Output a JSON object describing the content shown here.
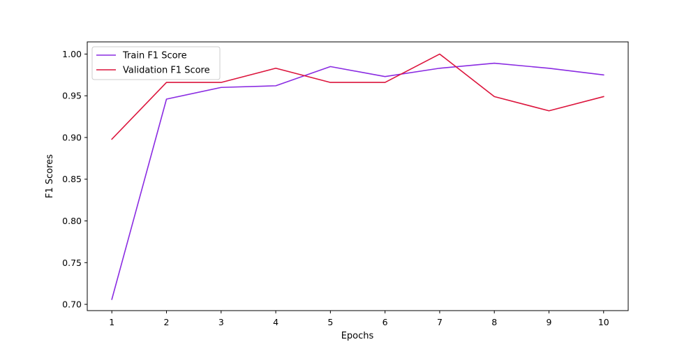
{
  "chart_data": {
    "type": "line",
    "title": "",
    "xlabel": "Epochs",
    "ylabel": "F1 Scores",
    "x": [
      1,
      2,
      3,
      4,
      5,
      6,
      7,
      8,
      9,
      10
    ],
    "xticks": [
      "1",
      "2",
      "3",
      "4",
      "5",
      "6",
      "7",
      "8",
      "9",
      "10"
    ],
    "yticks": [
      0.7,
      0.75,
      0.8,
      0.85,
      0.9,
      0.95,
      1.0
    ],
    "ytick_labels": [
      "0.70",
      "0.75",
      "0.80",
      "0.85",
      "0.90",
      "0.95",
      "1.00"
    ],
    "xlim": [
      0.55,
      10.45
    ],
    "ylim": [
      0.6925,
      1.0146
    ],
    "grid": false,
    "legend_position": "top-left",
    "series": [
      {
        "name": "Train F1 Score",
        "color": "#8a2be2",
        "values": [
          0.706,
          0.946,
          0.96,
          0.962,
          0.985,
          0.973,
          0.983,
          0.989,
          0.983,
          0.975
        ]
      },
      {
        "name": "Validation F1 Score",
        "color": "#dc143c",
        "values": [
          0.898,
          0.966,
          0.966,
          0.983,
          0.966,
          0.966,
          1.0,
          0.949,
          0.932,
          0.949
        ]
      }
    ]
  }
}
